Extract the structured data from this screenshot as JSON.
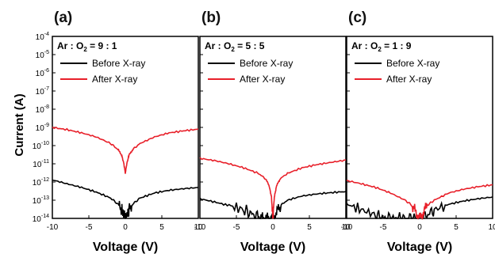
{
  "figure": {
    "ylabel": "Current (A)",
    "y_ticks": [
      "10-4",
      "10-5",
      "10-6",
      "10-7",
      "10-8",
      "10-9",
      "10-10",
      "10-11",
      "10-12",
      "10-13",
      "10-14"
    ],
    "x_ticks": [
      "-10",
      "-5",
      "0",
      "5",
      "10"
    ],
    "colors": {
      "before": "#000000",
      "after": "#e8202a"
    }
  },
  "chart_data": [
    {
      "type": "line",
      "panel": "(a)",
      "annotation": "Ar : O2 = 9 : 1",
      "xlabel": "Voltage (V)",
      "ylabel": "Current (A)",
      "xlim": [
        -10,
        10
      ],
      "ylim": [
        1e-14,
        0.0001
      ],
      "yscale": "log",
      "legend": "top-left",
      "series": [
        {
          "name": "Before X-ray",
          "color": "#000000",
          "x": [
            -10,
            -8,
            -6,
            -4,
            -2,
            -1,
            -0.5,
            -0.2,
            0,
            0.2,
            0.5,
            1,
            2,
            4,
            6,
            8,
            10
          ],
          "y": [
            1.3e-12,
            8e-13,
            5e-13,
            2.8e-13,
            1.3e-13,
            6e-14,
            3e-14,
            1.5e-14,
            1e-14,
            1.5e-14,
            3e-14,
            6e-14,
            1.3e-13,
            2.5e-13,
            3.5e-13,
            4.3e-13,
            5e-13
          ]
        },
        {
          "name": "After X-ray",
          "color": "#e8202a",
          "x": [
            -10,
            -8,
            -6,
            -4,
            -2,
            -1,
            -0.5,
            -0.2,
            0,
            0.2,
            0.5,
            1,
            2,
            4,
            6,
            8,
            10
          ],
          "y": [
            1e-09,
            7.5e-10,
            5e-10,
            3e-10,
            1.3e-10,
            6e-11,
            3e-11,
            1e-11,
            3e-12,
            1e-11,
            3e-11,
            6e-11,
            1.3e-10,
            3e-10,
            5e-10,
            6.5e-10,
            8e-10
          ]
        }
      ]
    },
    {
      "type": "line",
      "panel": "(b)",
      "annotation": "Ar : O2 = 5 : 5",
      "xlabel": "Voltage (V)",
      "ylabel": "Current (A)",
      "xlim": [
        -10,
        10
      ],
      "ylim": [
        1e-14,
        0.0001
      ],
      "yscale": "log",
      "legend": "top-left",
      "series": [
        {
          "name": "Before X-ray",
          "color": "#000000",
          "x": [
            -10,
            -8,
            -6,
            -4,
            -3,
            -2,
            -1.5,
            -1,
            -0.5,
            0,
            0.5,
            1,
            2,
            4,
            6,
            8,
            10
          ],
          "y": [
            1.2e-13,
            8e-14,
            5e-14,
            3e-14,
            1.8e-14,
            1.2e-14,
            1e-14,
            1e-14,
            1e-14,
            1e-14,
            2e-14,
            5e-14,
            1e-13,
            1.7e-13,
            2.2e-13,
            2.6e-13,
            3e-13
          ]
        },
        {
          "name": "After X-ray",
          "color": "#e8202a",
          "x": [
            -10,
            -8,
            -6,
            -4,
            -2,
            -1,
            -0.5,
            -0.2,
            0,
            0.2,
            0.5,
            1,
            2,
            4,
            6,
            8,
            10
          ],
          "y": [
            2e-11,
            1.5e-11,
            1e-11,
            6e-12,
            3e-12,
            1.5e-12,
            6e-13,
            1.5e-13,
            1e-14,
            1.5e-13,
            6e-13,
            1.5e-12,
            3e-12,
            6e-12,
            9e-12,
            1.2e-11,
            1.6e-11
          ]
        }
      ]
    },
    {
      "type": "line",
      "panel": "(c)",
      "annotation": "Ar : O2 = 1 : 9",
      "xlabel": "Voltage (V)",
      "ylabel": "Current (A)",
      "xlim": [
        -10,
        10
      ],
      "ylim": [
        1e-14,
        0.0001
      ],
      "yscale": "log",
      "legend": "top-left",
      "series": [
        {
          "name": "Before X-ray",
          "color": "#000000",
          "x": [
            -10,
            -8,
            -6,
            -5,
            -4,
            -3,
            -2,
            -1,
            0,
            1,
            2,
            4,
            6,
            8,
            10
          ],
          "y": [
            6e-14,
            3e-14,
            1.5e-14,
            1e-14,
            1e-14,
            1e-14,
            1e-14,
            1e-14,
            1e-14,
            1.5e-14,
            3e-14,
            6e-14,
            9e-14,
            1.2e-13,
            1.5e-13
          ]
        },
        {
          "name": "After X-ray",
          "color": "#e8202a",
          "x": [
            -10,
            -8,
            -6,
            -4,
            -2,
            -1,
            -0.5,
            0,
            0.5,
            1,
            2,
            4,
            6,
            8,
            10
          ],
          "y": [
            1.2e-12,
            8e-13,
            5e-13,
            2.5e-13,
            1e-13,
            5e-14,
            2e-14,
            1e-14,
            2e-14,
            5e-14,
            1e-13,
            2.5e-13,
            4e-13,
            5.5e-13,
            7e-13
          ]
        }
      ]
    }
  ]
}
